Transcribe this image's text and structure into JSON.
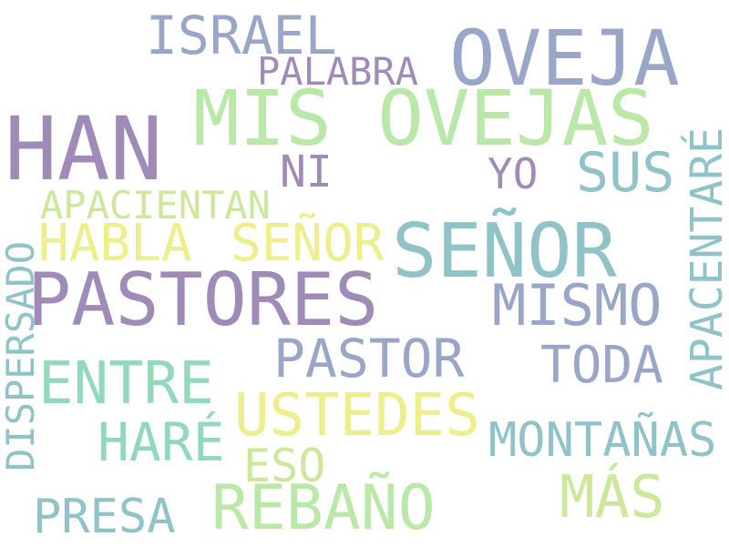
{
  "palette": {
    "purple": "#a08bb8",
    "lavender": "#9aa6c8",
    "green": "#b9e8a8",
    "teal": "#8fc3c8",
    "mint": "#92d9bb",
    "yellow": "#eeee8c",
    "lime": "#cde89a"
  },
  "words": [
    {
      "text": "OVEJA",
      "color": "lavender"
    },
    {
      "text": "ISRAEL",
      "color": "lavender"
    },
    {
      "text": "PALABRA",
      "color": "purple"
    },
    {
      "text": "HAN",
      "color": "purple"
    },
    {
      "text": "MIS OVEJAS",
      "color": "green"
    },
    {
      "text": "NI",
      "color": "purple"
    },
    {
      "text": "YO",
      "color": "purple"
    },
    {
      "text": "SUS",
      "color": "teal"
    },
    {
      "text": "APACENTARÉ",
      "color": "teal"
    },
    {
      "text": "APACIENTAN",
      "color": "lime"
    },
    {
      "text": "HABLA",
      "color": "yellow"
    },
    {
      "text": "SEÑOR",
      "color": "yellow"
    },
    {
      "text": "SEÑOR",
      "color": "teal"
    },
    {
      "text": "PASTORES",
      "color": "purple"
    },
    {
      "text": "MISMO",
      "color": "lavender"
    },
    {
      "text": "DISPERSADO",
      "color": "teal"
    },
    {
      "text": "PASTOR",
      "color": "lavender"
    },
    {
      "text": "ENTRE",
      "color": "mint"
    },
    {
      "text": "TODA",
      "color": "lavender"
    },
    {
      "text": "USTEDES",
      "color": "yellow"
    },
    {
      "text": "HARÉ",
      "color": "mint"
    },
    {
      "text": "MONTAÑAS",
      "color": "teal"
    },
    {
      "text": "ESO",
      "color": "lime"
    },
    {
      "text": "MÁS",
      "color": "lime"
    },
    {
      "text": "REBAÑO",
      "color": "green"
    },
    {
      "text": "PRESA",
      "color": "teal"
    }
  ]
}
